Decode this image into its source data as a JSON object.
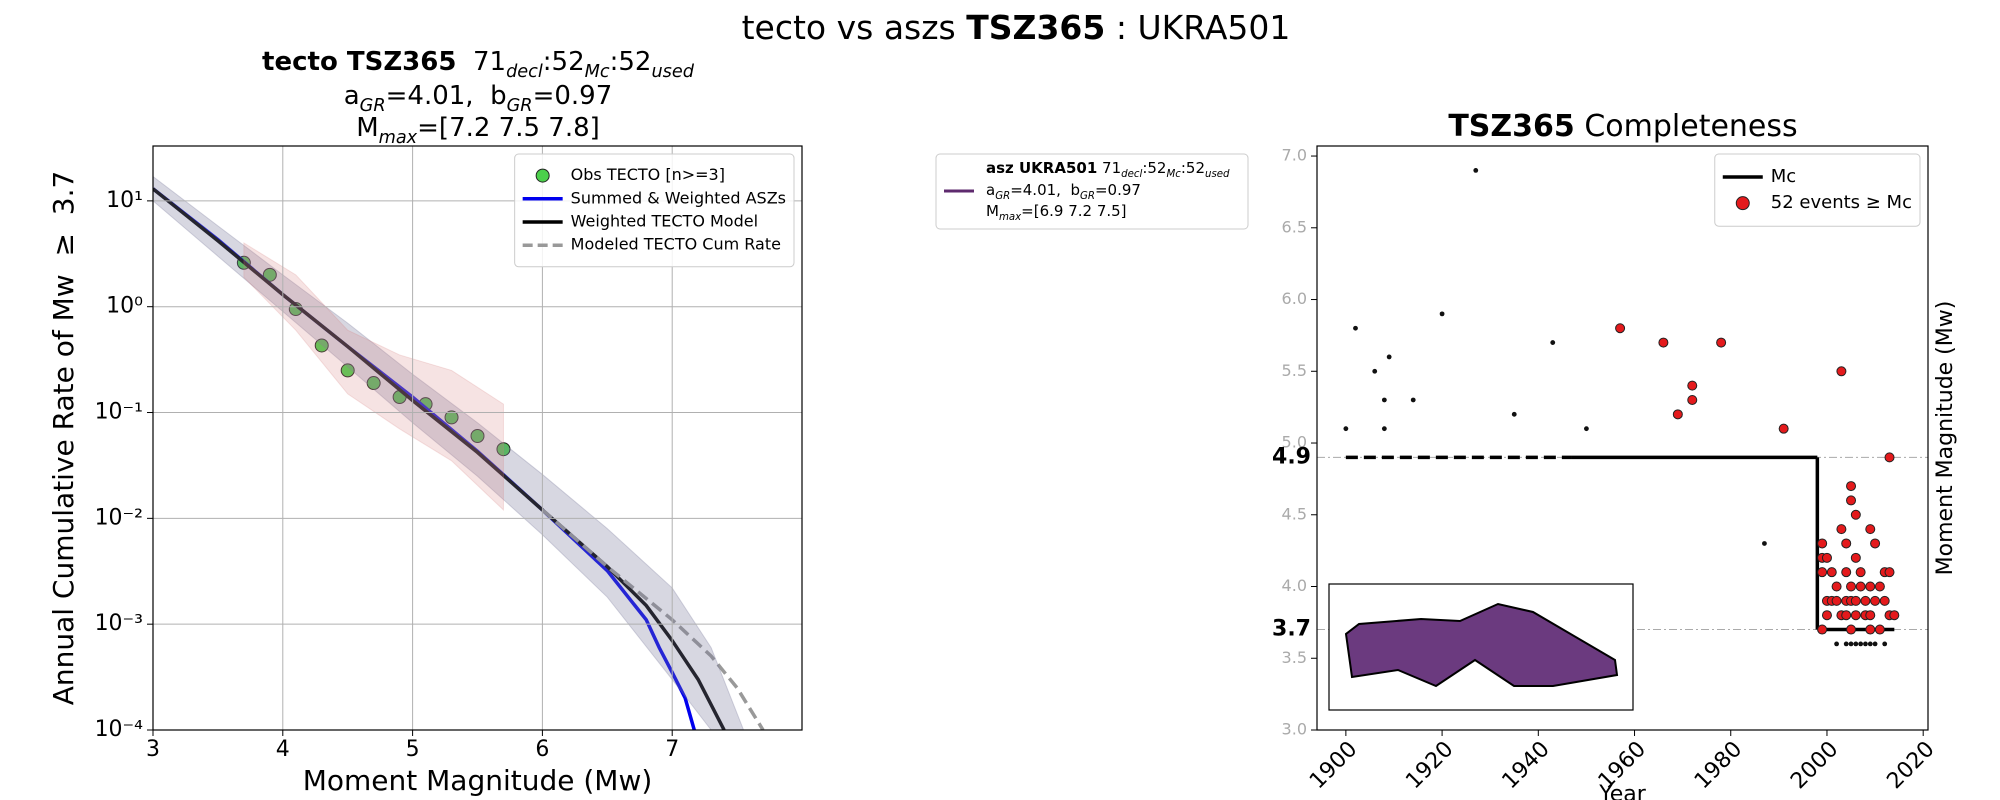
{
  "title": [
    "tecto vs aszs ",
    "TSZ365",
    " : UKRA501"
  ],
  "asz_legend": {
    "color": "#5e2a6e",
    "lines": [
      [
        "asz UKRA501",
        " 71",
        "decl",
        ":52",
        "Mc",
        ":52",
        "used"
      ],
      [
        "a",
        "GR",
        "=4.01,  b",
        "GR",
        "=0.97"
      ],
      [
        "M",
        "max",
        "=[6.9 7.2 7.5]"
      ]
    ]
  },
  "chart_data": [
    {
      "type": "line",
      "title_lines": [
        [
          "tecto TSZ365",
          "  71",
          "decl",
          ":52",
          "Mc",
          ":52",
          "used"
        ],
        [
          "a",
          "GR",
          "=4.01,  b",
          "GR",
          "=0.97"
        ],
        [
          "M",
          "max",
          "=[7.2 7.5 7.8]"
        ]
      ],
      "xlabel": "Moment Magnitude (Mw)",
      "ylabel": "Annual Cumulative Rate of Mw  ≥  3.7",
      "ylabel_side": "left",
      "xlim": [
        3,
        8
      ],
      "xticks": [
        3,
        4,
        5,
        6,
        7
      ],
      "ylim": [
        0.0001,
        33
      ],
      "ylog": true,
      "yticks": [
        {
          "value": 10,
          "label": "10¹"
        },
        {
          "value": 1,
          "label": "10⁰"
        },
        {
          "value": 0.1,
          "label": "10⁻¹"
        },
        {
          "value": 0.01,
          "label": "10⁻²"
        },
        {
          "value": 0.001,
          "label": "10⁻³"
        },
        {
          "value": 0.0001,
          "label": "10⁻⁴"
        }
      ],
      "grid": true,
      "legend": "upper right",
      "xtick_label_color": "#000000",
      "ytick_label_color": "#000000",
      "series": [
        {
          "name": "Obs TECTO [n>=3]",
          "kind": "scatter",
          "color": "#4cd04c",
          "edgecolor": "#222222",
          "x": [
            3.7,
            3.9,
            4.1,
            4.3,
            4.5,
            4.7,
            4.9,
            5.1,
            5.3,
            5.5,
            5.7
          ],
          "values": [
            2.6,
            2.0,
            0.95,
            0.43,
            0.25,
            0.19,
            0.14,
            0.12,
            0.09,
            0.06,
            0.045
          ]
        },
        {
          "name": "Summed & Weighted ASZs",
          "kind": "line",
          "color": "#0000ee",
          "linestyle": "solid",
          "x": [
            3,
            3.5,
            4,
            4.5,
            5,
            5.5,
            6,
            6.5,
            6.8,
            6.9,
            7,
            7.1,
            7.17
          ],
          "values": [
            13,
            4.3,
            1.3,
            0.42,
            0.14,
            0.043,
            0.012,
            0.0032,
            0.0011,
            0.0006,
            0.00035,
            0.0002,
            0.0001
          ]
        },
        {
          "name": "Weighted TECTO Model",
          "kind": "line",
          "color": "#000000",
          "linestyle": "solid",
          "x": [
            3,
            3.5,
            4,
            4.5,
            5,
            5.5,
            6,
            6.5,
            6.8,
            7,
            7.2,
            7.4
          ],
          "values": [
            13,
            4.2,
            1.3,
            0.42,
            0.13,
            0.042,
            0.012,
            0.0035,
            0.0015,
            0.0007,
            0.0003,
            0.0001
          ]
        },
        {
          "name": "Modeled TECTO Cum Rate",
          "kind": "line",
          "color": "#999999",
          "linestyle": "dashed",
          "x": [
            6,
            6.5,
            7,
            7.3,
            7.5,
            7.7
          ],
          "values": [
            0.012,
            0.0035,
            0.0011,
            0.0005,
            0.00025,
            0.0001
          ]
        }
      ],
      "bands": [
        {
          "color": "#7c7c9c",
          "alpha": 0.3,
          "x": [
            3,
            3.5,
            4,
            4.5,
            5,
            5.5,
            6,
            6.5,
            7,
            7.3,
            7.55
          ],
          "upper": [
            17,
            5.8,
            2,
            0.7,
            0.23,
            0.08,
            0.026,
            0.008,
            0.0022,
            0.0006,
            0.0001
          ],
          "lower": [
            10,
            3,
            0.9,
            0.27,
            0.08,
            0.025,
            0.007,
            0.0018,
            0.0003,
            0.0001,
            0.0001
          ]
        },
        {
          "color": "#d88080",
          "alpha": 0.22,
          "x": [
            3.7,
            4.1,
            4.5,
            4.9,
            5.3,
            5.7
          ],
          "upper": [
            4,
            2,
            0.6,
            0.35,
            0.25,
            0.12
          ],
          "lower": [
            1.9,
            0.6,
            0.15,
            0.07,
            0.035,
            0.012
          ]
        }
      ]
    },
    {
      "type": "scatter",
      "title": [
        "TSZ365",
        " Completeness"
      ],
      "xlabel": "Year",
      "ylabel": "Moment Magnitude (Mw)",
      "ylabel_side": "right",
      "xlim": [
        1894,
        2021
      ],
      "xticks": [
        1900,
        1920,
        1940,
        1960,
        1980,
        2000,
        2020
      ],
      "xtick_rotation": 45,
      "ylim": [
        3,
        7.07
      ],
      "yticks": [
        {
          "value": 3,
          "label": "3.0"
        },
        3.5,
        {
          "value": 4,
          "label": "4.0"
        },
        4.5,
        {
          "value": 5,
          "label": "5.0"
        },
        5.5,
        {
          "value": 6,
          "label": "6.0"
        },
        6.5,
        {
          "value": 7,
          "label": "7.0"
        }
      ],
      "grid": false,
      "legend": "upper right",
      "xtick_label_color": "#000000",
      "ytick_label_color": "#aaaaaa",
      "levels": [
        4.9,
        3.7
      ],
      "series": [
        {
          "kind": "scatter",
          "color": "#111111",
          "x": [
            1900,
            1902,
            1906,
            1908,
            1908,
            1909,
            1914,
            1920,
            1927,
            1935,
            1943,
            1950,
            1987,
            2002,
            2004,
            2005,
            2006,
            2007,
            2008,
            2009,
            2010,
            2012
          ],
          "values": [
            5.1,
            5.8,
            5.5,
            5.3,
            5.1,
            5.6,
            5.3,
            5.9,
            6.9,
            5.2,
            5.7,
            5.1,
            4.3,
            3.6,
            3.6,
            3.6,
            3.6,
            3.6,
            3.6,
            3.6,
            3.6,
            3.6
          ]
        },
        {
          "name": "Mc",
          "kind": "line",
          "color": "#000000",
          "linestyle": "solid",
          "segment_styles": [
            "dashed",
            "solid",
            "solid",
            "solid"
          ],
          "x": [
            1900,
            1947,
            1998,
            1998,
            2014
          ],
          "values": [
            4.9,
            4.9,
            4.9,
            3.7,
            3.7
          ]
        },
        {
          "name": "52 events ≥ Mc",
          "kind": "scatter",
          "color": "#e41a1c",
          "edgecolor": "#222222",
          "x": [
            1957,
            1966,
            1969,
            1972,
            1972,
            1978,
            1991,
            2003,
            2013,
            2005,
            2005,
            2006,
            2003,
            2009,
            1999,
            2004,
            2010,
            1999,
            2000,
            2006,
            1999,
            2001,
            2004,
            2007,
            2012,
            2013,
            2002,
            2005,
            2007,
            2009,
            2011,
            2000,
            2001,
            2002,
            2004,
            2005,
            2006,
            2008,
            2010,
            2012,
            2000,
            2003,
            2004,
            2006,
            2008,
            2009,
            2013,
            1999,
            2005,
            2009,
            2011,
            2014
          ],
          "values": [
            5.8,
            5.7,
            5.2,
            5.4,
            5.3,
            5.7,
            5.1,
            5.5,
            4.9,
            4.7,
            4.6,
            4.5,
            4.4,
            4.4,
            4.3,
            4.3,
            4.3,
            4.2,
            4.2,
            4.2,
            4.1,
            4.1,
            4.1,
            4.1,
            4.1,
            4.1,
            4.0,
            4.0,
            4.0,
            4.0,
            4.0,
            3.9,
            3.9,
            3.9,
            3.9,
            3.9,
            3.9,
            3.9,
            3.9,
            3.9,
            3.8,
            3.8,
            3.8,
            3.8,
            3.8,
            3.8,
            3.8,
            3.7,
            3.7,
            3.7,
            3.7,
            3.8
          ]
        }
      ]
    }
  ]
}
